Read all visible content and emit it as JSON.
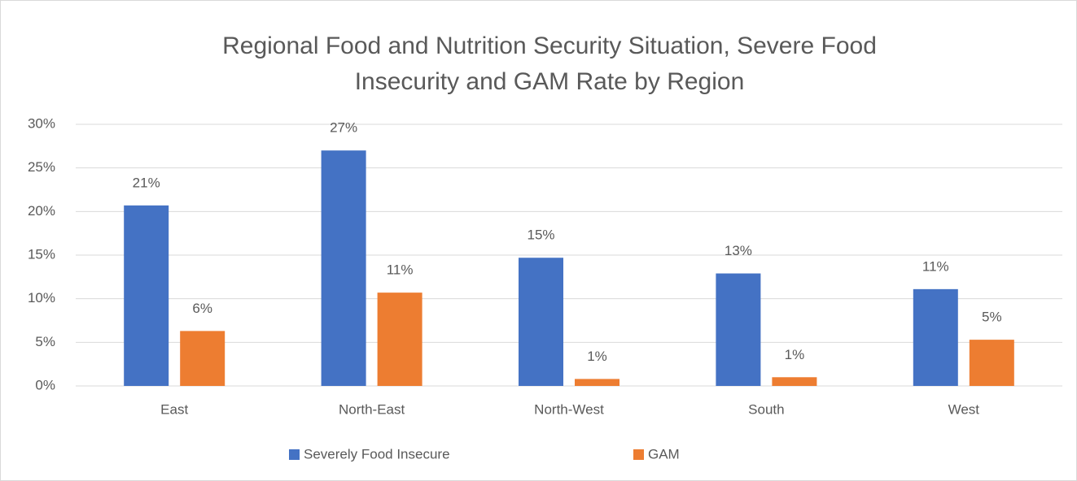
{
  "chart_data": {
    "type": "bar",
    "title": [
      "Regional Food and Nutrition Security Situation, Severe Food",
      "Insecurity and GAM Rate by Region"
    ],
    "categories": [
      "East",
      "North-East",
      "North-West",
      "South",
      "West"
    ],
    "series": [
      {
        "name": "Severely Food Insecure",
        "color": "#4472c4",
        "values": [
          20.7,
          27,
          14.7,
          12.9,
          11.1
        ],
        "value_labels": [
          "21%",
          "27%",
          "15%",
          "13%",
          "11%"
        ]
      },
      {
        "name": "GAM",
        "color": "#ed7d31",
        "values": [
          6.3,
          10.7,
          0.8,
          1.0,
          5.3
        ],
        "value_labels": [
          "6%",
          "11%",
          "1%",
          "1%",
          "5%"
        ]
      }
    ],
    "ylim": [
      0,
      30
    ],
    "yticks": [
      {
        "value": 0,
        "label": "0%"
      },
      {
        "value": 5,
        "label": "5%"
      },
      {
        "value": 10,
        "label": "10%"
      },
      {
        "value": 15,
        "label": "15%"
      },
      {
        "value": 20,
        "label": "20%"
      },
      {
        "value": 25,
        "label": "25%"
      },
      {
        "value": 30,
        "label": "30%"
      }
    ],
    "grid": true,
    "legend": "bottom"
  }
}
